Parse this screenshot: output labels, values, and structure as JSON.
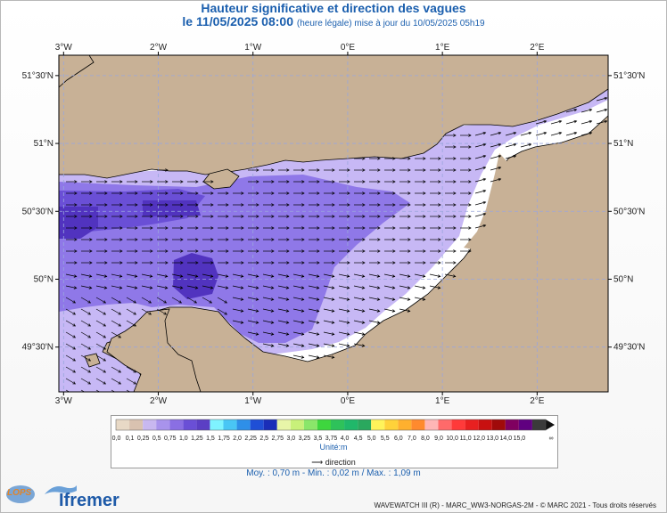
{
  "header": {
    "title": "Hauteur significative et direction des vagues",
    "date_main": "le 11/05/2025 08:00",
    "date_sub": "(heure légale) mise à jour du 10/05/2025 05h19"
  },
  "colors": {
    "land": "#c8b196",
    "sea_low": "#c7b8f5",
    "sea_mid": "#8f78e8",
    "sea_high": "#6a4fd6",
    "sea_max": "#5133bf",
    "outside_domain": "#ffffff",
    "grid": "#9aa6dc",
    "arrow": "#000000",
    "title": "#1b5fae"
  },
  "chart_data": {
    "type": "heatmap",
    "title": "Hauteur significative et direction des vagues",
    "x_axis": {
      "range_deg": [
        -3.05,
        2.75
      ],
      "ticks": [
        -3,
        -2,
        -1,
        0,
        1,
        2
      ],
      "tick_labels": [
        "3°W",
        "2°W",
        "1°W",
        "0°E",
        "1°E",
        "2°E"
      ]
    },
    "y_axis": {
      "range_deg": [
        49.17,
        51.65
      ],
      "ticks": [
        49.5,
        50,
        50.5,
        51,
        51.5
      ],
      "tick_labels": [
        "49°30'N",
        "50°N",
        "50°30'N",
        "51°N",
        "51°30'N"
      ]
    },
    "grid": true,
    "colorscale": {
      "thresholds": [
        0.0,
        0.1,
        0.25,
        0.5,
        0.75,
        1.0,
        1.25,
        1.5,
        1.75,
        2.0,
        2.25,
        2.5,
        2.75,
        3.0,
        3.25,
        3.5,
        3.75,
        4.0,
        4.5,
        5.0,
        5.5,
        6.0,
        7.0,
        8.0,
        9.0,
        10.0,
        11.0,
        12.0,
        13.0,
        14.0,
        15.0
      ],
      "tick_labels": [
        "0,0",
        "0,1",
        "0,25",
        "0,5",
        "0,75",
        "1,0",
        "1,25",
        "1,5",
        "1,75",
        "2,0",
        "2,25",
        "2,5",
        "2,75",
        "3,0",
        "3,25",
        "3,5",
        "3,75",
        "4,0",
        "4,5",
        "5,0",
        "5,5",
        "6,0",
        "7,0",
        "8,0",
        "9,0",
        "10,0",
        "11,0",
        "12,0",
        "13,0",
        "14,0",
        "15,0"
      ],
      "colors": [
        "#e8d9c6",
        "#d9c2b0",
        "#c8b8f0",
        "#a893ec",
        "#8a6fe3",
        "#6a4fd6",
        "#5b3fc4",
        "#7ff3ff",
        "#49c6f5",
        "#2e8fe8",
        "#1f4fd6",
        "#1a2eb8",
        "#e8f5a8",
        "#c8f07a",
        "#8ae66a",
        "#3ed63e",
        "#2ec25a",
        "#20b86a",
        "#2aa85e",
        "#fff35a",
        "#ffd23a",
        "#ffb02e",
        "#ff8a2e",
        "#ffb6b6",
        "#ff6a6a",
        "#ff3a3a",
        "#e82020",
        "#c81010",
        "#a00a0a",
        "#800060",
        "#600080",
        "#3a3a3a"
      ],
      "unit_label": "Unité:m",
      "overflow_symbol": "∞"
    },
    "field_regions_m": {
      "coastal_fringe": 0.1,
      "channel_east_and_south": 0.5,
      "channel_central": 0.75,
      "channel_west_core": 1.0,
      "max_patches": 1.09
    },
    "direction_legend": "direction",
    "stats": "Moy. : 0,70 m   -   Min. : 0,02 m / Max. : 1,09 m",
    "stats_values": {
      "mean_m": 0.7,
      "min_m": 0.02,
      "max_m": 1.09
    }
  },
  "footer": {
    "copyright": "WAVEWATCH III (R) - MARC_WW3-NORGAS-2M - © MARC 2021 - Tous droits réservés",
    "logo_lops": "LOPS",
    "logo_ifremer": "Ifremer"
  }
}
